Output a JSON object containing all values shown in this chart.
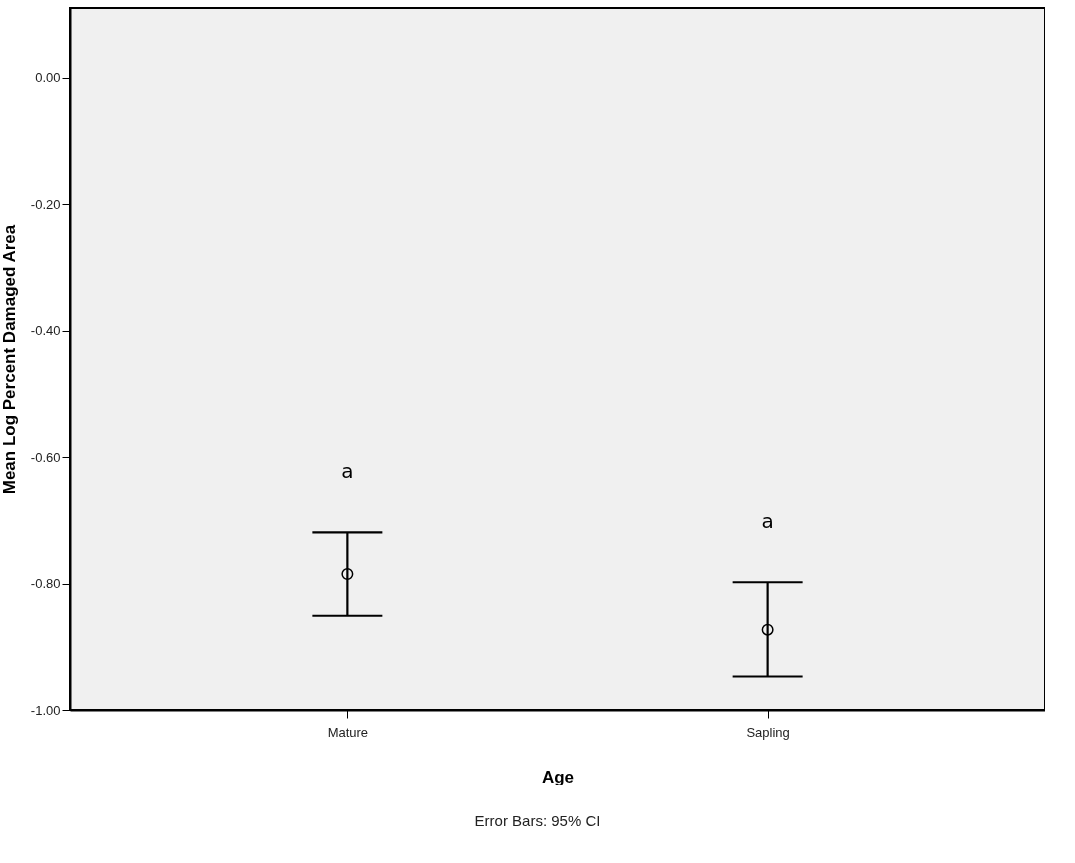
{
  "chart_data": {
    "type": "scatter",
    "xlabel": "Age",
    "ylabel": "Mean Log Percent Damaged Area",
    "categories": [
      "Mature",
      "Sapling"
    ],
    "values": [
      -0.785,
      -0.873
    ],
    "errors": [
      [
        -0.851,
        -0.719
      ],
      [
        -0.947,
        -0.798
      ]
    ],
    "color": "#000000",
    "marker": "circle",
    "grid": false,
    "ylim": [
      -1,
      0.11
    ],
    "yticks": [
      {
        "value": -1,
        "label": "-1.00"
      },
      {
        "value": -0.8,
        "label": "-0.80"
      },
      {
        "value": -0.6,
        "label": "-0.60"
      },
      {
        "value": -0.4,
        "label": "-0.40"
      },
      {
        "value": -0.2,
        "label": "-0.20"
      },
      {
        "value": 0,
        "label": "0.00"
      }
    ],
    "annotations": [
      "a",
      "a",
      "Error Bars: 95% CI"
    ]
  }
}
